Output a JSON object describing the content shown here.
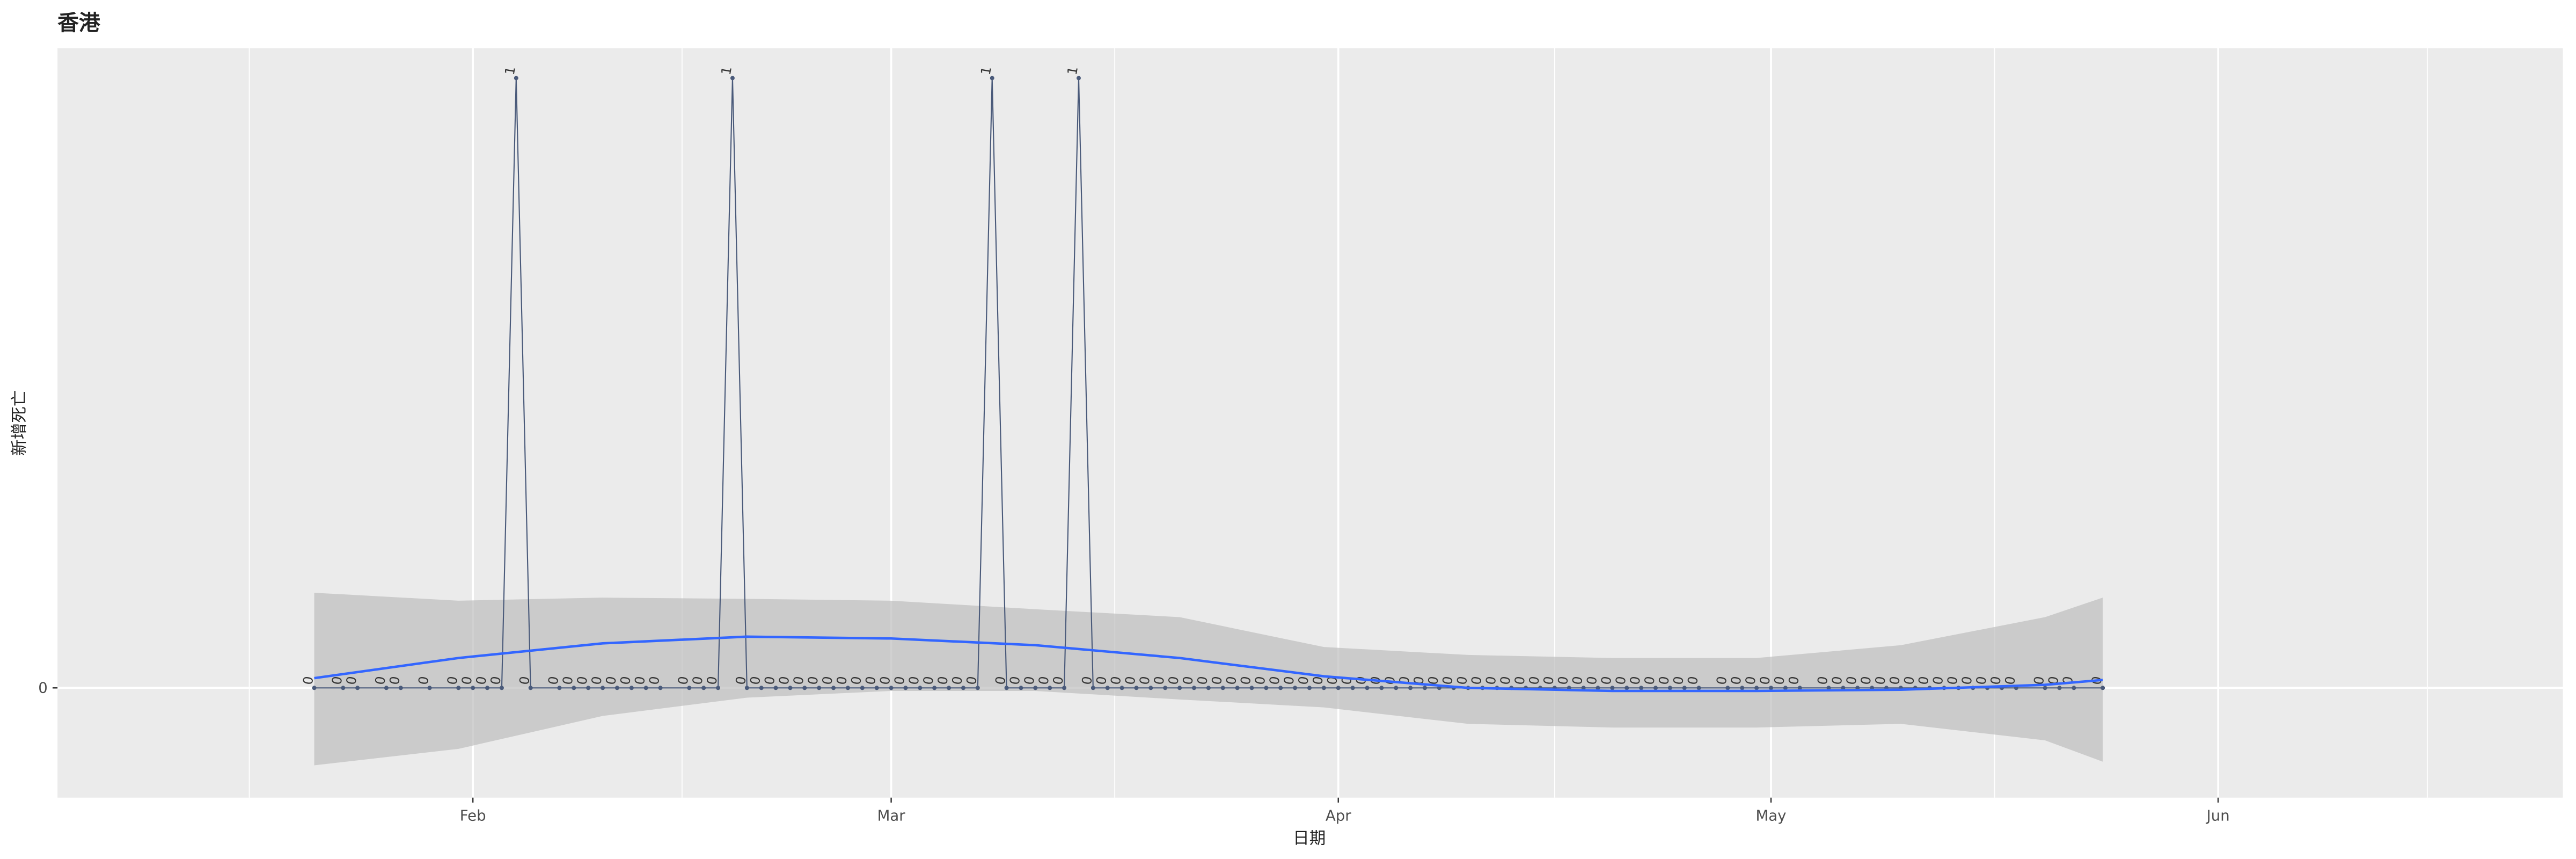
{
  "chart_data": {
    "type": "line",
    "title": "香港",
    "xlabel": "日期",
    "ylabel": "新增死亡",
    "x": [
      21,
      23,
      24,
      26,
      27,
      29,
      31,
      32,
      33,
      34,
      35,
      36,
      38,
      39,
      40,
      41,
      42,
      43,
      44,
      45,
      47,
      48,
      49,
      50,
      51,
      52,
      53,
      54,
      55,
      56,
      57,
      58,
      59,
      60,
      61,
      62,
      63,
      64,
      65,
      66,
      67,
      68,
      69,
      70,
      71,
      72,
      73,
      74,
      75,
      76,
      77,
      78,
      79,
      80,
      81,
      82,
      83,
      84,
      85,
      86,
      87,
      88,
      89,
      90,
      91,
      92,
      93,
      94,
      95,
      96,
      97,
      98,
      99,
      100,
      101,
      102,
      103,
      104,
      105,
      106,
      107,
      108,
      109,
      110,
      111,
      112,
      113,
      114,
      115,
      116,
      117,
      119,
      120,
      121,
      122,
      123,
      124,
      126,
      127,
      128,
      129,
      130,
      131,
      132,
      133,
      134,
      135,
      136,
      137,
      138,
      139,
      141,
      142,
      143,
      145
    ],
    "values": [
      0,
      0,
      0,
      0,
      0,
      0,
      0,
      0,
      0,
      0,
      1,
      0,
      0,
      0,
      0,
      0,
      0,
      0,
      0,
      0,
      0,
      0,
      0,
      1,
      0,
      0,
      0,
      0,
      0,
      0,
      0,
      0,
      0,
      0,
      0,
      0,
      0,
      0,
      0,
      0,
      0,
      1,
      0,
      0,
      0,
      0,
      0,
      1,
      0,
      0,
      0,
      0,
      0,
      0,
      0,
      0,
      0,
      0,
      0,
      0,
      0,
      0,
      0,
      0,
      0,
      0,
      0,
      0,
      0,
      0,
      0,
      0,
      0,
      0,
      0,
      0,
      0,
      0,
      0,
      0,
      0,
      0,
      0,
      0,
      0,
      0,
      0,
      0,
      0,
      0,
      0,
      0,
      0,
      0,
      0,
      0,
      0,
      0,
      0,
      0,
      0,
      0,
      0,
      0,
      0,
      0,
      0,
      0,
      0,
      0,
      0,
      0,
      0,
      0,
      0
    ],
    "color": "#4a5a7a",
    "smooth": {
      "color": "#3366ff",
      "band_color": "#bdbdbd",
      "x": [
        21,
        31,
        41,
        51,
        61,
        71,
        81,
        91,
        101,
        111,
        121,
        131,
        141,
        145
      ],
      "values": [
        0.016,
        0.049,
        0.073,
        0.084,
        0.081,
        0.07,
        0.049,
        0.019,
        0,
        -0.005,
        -0.005,
        -0.003,
        0.005,
        0.013
      ],
      "upper": [
        0.156,
        0.143,
        0.148,
        0.146,
        0.143,
        0.129,
        0.116,
        0.067,
        0.054,
        0.049,
        0.049,
        0.07,
        0.116,
        0.148
      ],
      "lower": [
        -0.127,
        -0.1,
        -0.046,
        -0.016,
        -0.005,
        -0.005,
        -0.019,
        -0.032,
        -0.059,
        -0.065,
        -0.065,
        -0.059,
        -0.086,
        -0.121
      ]
    },
    "xlim": [
      3.2,
      176.9
    ],
    "xticks": [
      {
        "value": 32,
        "label": "Feb"
      },
      {
        "value": 61,
        "label": "Mar"
      },
      {
        "value": 92,
        "label": "Apr"
      },
      {
        "value": 122,
        "label": "May"
      },
      {
        "value": 153,
        "label": "Jun"
      }
    ],
    "xminor": [
      16.5,
      46.5,
      76.5,
      107,
      137.5,
      167.5
    ],
    "ylim": [
      -0.18,
      1.049
    ],
    "yticks": [
      0
    ],
    "grid": true
  }
}
